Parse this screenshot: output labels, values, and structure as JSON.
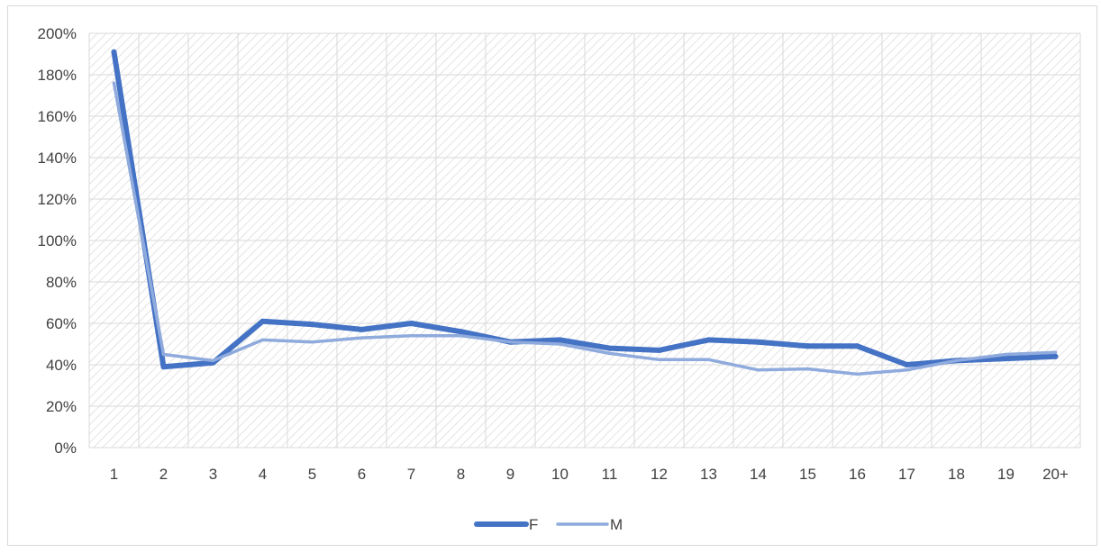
{
  "chart_data": {
    "type": "line",
    "title": "",
    "xlabel": "",
    "ylabel": "",
    "categories": [
      "1",
      "2",
      "3",
      "4",
      "5",
      "6",
      "7",
      "8",
      "9",
      "10",
      "11",
      "12",
      "13",
      "14",
      "15",
      "16",
      "17",
      "18",
      "19",
      "20+"
    ],
    "y_ticks": [
      "0%",
      "20%",
      "40%",
      "60%",
      "80%",
      "100%",
      "120%",
      "140%",
      "160%",
      "180%",
      "200%"
    ],
    "ylim": [
      0,
      200
    ],
    "grid": true,
    "plot_background": "diagonal-hatch",
    "legend_position": "bottom",
    "series": [
      {
        "name": "F",
        "color": "#4472c4",
        "line_weight": "thick",
        "values": [
          191,
          39,
          41,
          61,
          59.5,
          57,
          60,
          56,
          51,
          52,
          48,
          47,
          52,
          51,
          49,
          49,
          40,
          42,
          43,
          44
        ]
      },
      {
        "name": "M",
        "color": "#8faadc",
        "line_weight": "thin",
        "values": [
          176,
          45,
          42,
          52,
          51,
          53,
          54,
          54,
          51,
          50,
          45.5,
          42.5,
          42.5,
          37.5,
          38,
          35.5,
          37.5,
          42,
          45,
          46
        ]
      }
    ]
  }
}
